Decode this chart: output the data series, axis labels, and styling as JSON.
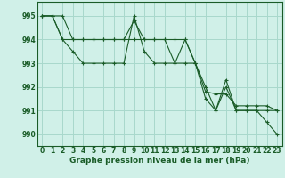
{
  "background_color": "#d0f0e8",
  "grid_color": "#a8d8cc",
  "line_color": "#1a5c28",
  "text_color": "#1a5c28",
  "xlabel": "Graphe pression niveau de la mer (hPa)",
  "xlabel_fontsize": 6.5,
  "tick_fontsize": 5.5,
  "ylim": [
    989.5,
    995.6
  ],
  "xlim": [
    -0.5,
    23.5
  ],
  "yticks": [
    990,
    991,
    992,
    993,
    994,
    995
  ],
  "xticks": [
    0,
    1,
    2,
    3,
    4,
    5,
    6,
    7,
    8,
    9,
    10,
    11,
    12,
    13,
    14,
    15,
    16,
    17,
    18,
    19,
    20,
    21,
    22,
    23
  ],
  "series": [
    {
      "x": [
        0,
        1,
        2,
        3,
        4,
        5,
        6,
        7,
        8,
        9,
        10,
        11,
        12,
        13,
        14,
        15,
        16,
        17,
        18,
        19,
        20,
        21,
        22,
        23
      ],
      "y": [
        995,
        995,
        995,
        994,
        994,
        994,
        994,
        994,
        994,
        994.8,
        994,
        994,
        994,
        993,
        993,
        993,
        991.5,
        991,
        992,
        991,
        991,
        991,
        991,
        991
      ]
    },
    {
      "x": [
        0,
        1,
        2,
        3,
        4,
        5,
        6,
        7,
        8,
        9,
        10,
        11,
        12,
        13,
        14,
        15,
        16,
        17,
        18,
        19,
        20,
        21,
        22,
        23
      ],
      "y": [
        995,
        995,
        994,
        994,
        994,
        994,
        994,
        994,
        994,
        994,
        994,
        994,
        994,
        994,
        994,
        993,
        991.8,
        991.7,
        991.7,
        991.2,
        991.2,
        991.2,
        991.2,
        991
      ]
    },
    {
      "x": [
        0,
        1,
        2,
        3,
        4,
        5,
        6,
        7,
        8,
        9,
        10,
        11,
        12,
        13,
        14,
        15,
        16,
        17,
        18,
        19,
        20,
        21,
        22,
        23
      ],
      "y": [
        995,
        995,
        994,
        993.5,
        993,
        993,
        993,
        993,
        993,
        995,
        993.5,
        993,
        993,
        993,
        994,
        993,
        992,
        991,
        992.3,
        991,
        991,
        991,
        990.5,
        990
      ]
    }
  ]
}
